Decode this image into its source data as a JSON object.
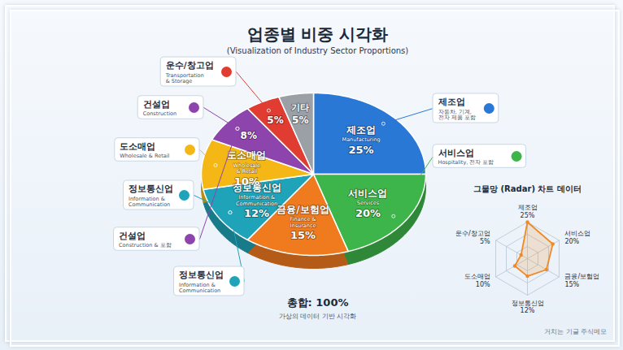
{
  "chart_data": [
    {
      "type": "pie",
      "title": "업종별 비중 시각화",
      "subtitle": "(Visualization of Industry Sector Proportions)",
      "categories": [
        "제조업",
        "서비스업",
        "금융/보험업",
        "정보통신업",
        "도소매업",
        "건설업",
        "운수/창고업",
        "기타"
      ],
      "english_labels": [
        "Manufacturing",
        "Services",
        "Finance & Insurance",
        "Information & Communication",
        "Wholesale & Retail",
        "Construction",
        "Transportation & Storage",
        null
      ],
      "values": [
        25,
        20,
        15,
        12,
        10,
        8,
        5,
        5
      ],
      "value_labels": [
        "25%",
        "20%",
        "15%",
        "12%",
        "10%",
        "8%",
        "5%",
        "5%"
      ],
      "colors": [
        "#2a78d6",
        "#3db54a",
        "#f07a1e",
        "#1fa3b8",
        "#f5b715",
        "#8e44ad",
        "#e03c31",
        "#9aa0a6"
      ],
      "data_labels": true,
      "callouts": [
        {
          "label": "운수/창고업",
          "sublabel": "Transportation & Storage"
        },
        {
          "label": "건설업",
          "sublabel": "Construction"
        },
        {
          "label": "도소매업",
          "sublabel": "Wholesale & Retail"
        },
        {
          "label": "정보통신업",
          "sublabel": "Information & Communication"
        },
        {
          "label": "건설업",
          "sublabel": "Construction & 포함"
        },
        {
          "label": "정보통신업",
          "sublabel": "Information & Communication"
        },
        {
          "label": "제조업",
          "sublabel": "자동차, 기계, 전자 제품 포함"
        },
        {
          "label": "서비스업",
          "sublabel": "Hospitality, 전자 포함"
        }
      ],
      "total_label": "총합: 100%",
      "caption": "가상의 데이터 기반 시각화",
      "watermark": "거치는 기글 주식메모"
    },
    {
      "type": "radar",
      "title": "그물망 (Radar) 차트 데이터",
      "categories": [
        "제조업",
        "서비스업",
        "금융/보험업",
        "정보통신업",
        "도소매업",
        "운수/창고업"
      ],
      "values": [
        25,
        20,
        15,
        12,
        10,
        5
      ],
      "value_labels": [
        "25%",
        "20%",
        "15%",
        "12%",
        "10%",
        "5%"
      ],
      "ylim": [
        0,
        25
      ],
      "grid": true,
      "tick_labels": false,
      "color": "#f08a24"
    }
  ]
}
